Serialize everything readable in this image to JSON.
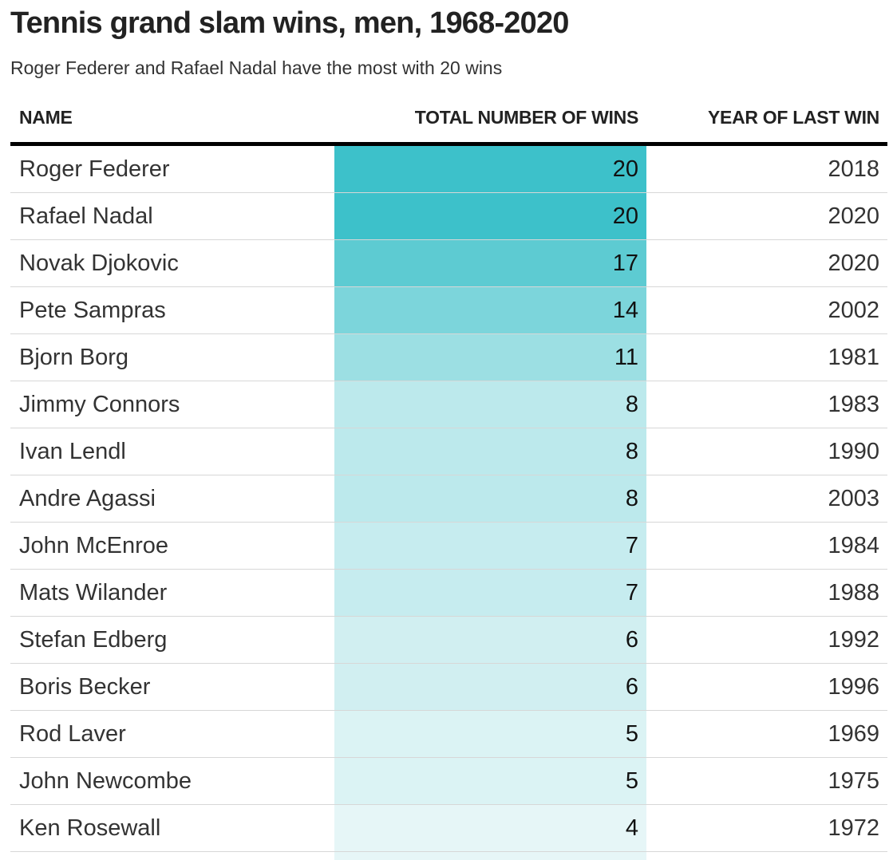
{
  "header": {
    "title": "Tennis grand slam wins, men, 1968-2020",
    "subtitle": "Roger Federer and Rafael Nadal have the most with 20 wins"
  },
  "colors": {
    "heat_low": "#e6f6f7",
    "heat_high": "#3dc1ca",
    "header_rule": "#000000",
    "row_rule": "#d7d7d7"
  },
  "chart_data": {
    "type": "table",
    "columns": [
      "NAME",
      "TOTAL NUMBER OF WINS",
      "YEAR OF LAST WIN"
    ],
    "heatmap_column": "TOTAL NUMBER OF WINS",
    "rows": [
      {
        "name": "Roger Federer",
        "wins": 20,
        "year": "2018"
      },
      {
        "name": "Rafael Nadal",
        "wins": 20,
        "year": "2020"
      },
      {
        "name": "Novak Djokovic",
        "wins": 17,
        "year": "2020"
      },
      {
        "name": "Pete Sampras",
        "wins": 14,
        "year": "2002"
      },
      {
        "name": "Bjorn Borg",
        "wins": 11,
        "year": "1981"
      },
      {
        "name": "Jimmy Connors",
        "wins": 8,
        "year": "1983"
      },
      {
        "name": "Ivan Lendl",
        "wins": 8,
        "year": "1990"
      },
      {
        "name": "Andre Agassi",
        "wins": 8,
        "year": "2003"
      },
      {
        "name": "John McEnroe",
        "wins": 7,
        "year": "1984"
      },
      {
        "name": "Mats Wilander",
        "wins": 7,
        "year": "1988"
      },
      {
        "name": "Stefan Edberg",
        "wins": 6,
        "year": "1992"
      },
      {
        "name": "Boris Becker",
        "wins": 6,
        "year": "1996"
      },
      {
        "name": "Rod Laver",
        "wins": 5,
        "year": "1969"
      },
      {
        "name": "John Newcombe",
        "wins": 5,
        "year": "1975"
      },
      {
        "name": "Ken Rosewall",
        "wins": 4,
        "year": "1972"
      }
    ]
  }
}
